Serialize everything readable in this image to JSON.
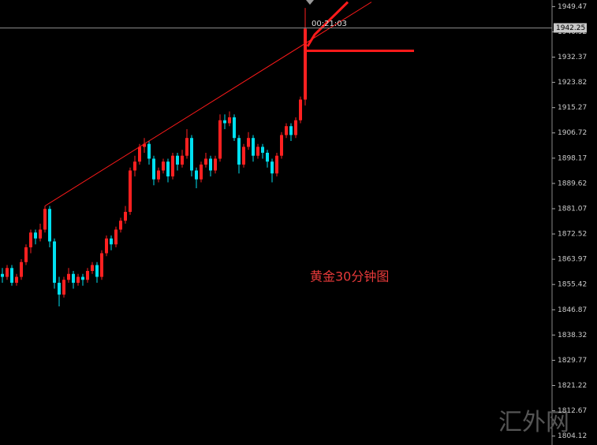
{
  "chart_data": {
    "type": "candlestick",
    "annotation": "黄金30分钟图",
    "watermark": "汇外网",
    "time_label": "00:21:03",
    "current_price": 1942.25,
    "up_color": "#ff2020",
    "down_color": "#00e0f0",
    "ylim": [
      1801.1,
      1951.7
    ],
    "yticks": [
      1949.47,
      1940.92,
      1932.37,
      1923.82,
      1915.27,
      1906.72,
      1898.17,
      1889.62,
      1881.07,
      1872.52,
      1863.97,
      1855.42,
      1846.87,
      1838.32,
      1829.77,
      1821.22,
      1812.67,
      1804.12
    ],
    "trendline": {
      "x": [
        9,
        78
      ],
      "y": [
        1882,
        1951
      ]
    },
    "level_line": {
      "x": [
        64,
        87
      ],
      "y": [
        1934.5,
        1934.5
      ]
    },
    "arrow": {
      "x": [
        64.5,
        66,
        73
      ],
      "y": [
        1936,
        1940,
        1951
      ]
    },
    "candles": [
      [
        1859,
        1861,
        1856,
        1858
      ],
      [
        1858,
        1862,
        1857,
        1861
      ],
      [
        1861,
        1862,
        1855,
        1856
      ],
      [
        1856,
        1859,
        1855,
        1858
      ],
      [
        1858,
        1864,
        1857,
        1863
      ],
      [
        1863,
        1869,
        1862,
        1868
      ],
      [
        1868,
        1874,
        1866,
        1873
      ],
      [
        1873,
        1874,
        1869,
        1871
      ],
      [
        1871,
        1876,
        1870,
        1874
      ],
      [
        1874,
        1882,
        1873,
        1881
      ],
      [
        1881,
        1882,
        1868,
        1870
      ],
      [
        1870,
        1871,
        1854,
        1856
      ],
      [
        1856,
        1858,
        1848,
        1852
      ],
      [
        1852,
        1858,
        1851,
        1857
      ],
      [
        1857,
        1861,
        1856,
        1859
      ],
      [
        1859,
        1860,
        1854,
        1856
      ],
      [
        1856,
        1859,
        1855,
        1858
      ],
      [
        1858,
        1859,
        1855,
        1857
      ],
      [
        1857,
        1861,
        1856,
        1860
      ],
      [
        1860,
        1863,
        1859,
        1862
      ],
      [
        1862,
        1863,
        1856,
        1858
      ],
      [
        1858,
        1867,
        1857,
        1866
      ],
      [
        1866,
        1872,
        1865,
        1871
      ],
      [
        1871,
        1872,
        1867,
        1869
      ],
      [
        1869,
        1875,
        1868,
        1874
      ],
      [
        1874,
        1878,
        1873,
        1877
      ],
      [
        1877,
        1882,
        1876,
        1880
      ],
      [
        1880,
        1895,
        1879,
        1894
      ],
      [
        1894,
        1899,
        1892,
        1897
      ],
      [
        1897,
        1903,
        1896,
        1902
      ],
      [
        1902,
        1905,
        1900,
        1903
      ],
      [
        1903,
        1904,
        1896,
        1898
      ],
      [
        1898,
        1899,
        1889,
        1891
      ],
      [
        1891,
        1895,
        1890,
        1894
      ],
      [
        1894,
        1898,
        1893,
        1897
      ],
      [
        1897,
        1898,
        1890,
        1892
      ],
      [
        1892,
        1900,
        1891,
        1899
      ],
      [
        1899,
        1900,
        1894,
        1896
      ],
      [
        1896,
        1901,
        1895,
        1899
      ],
      [
        1899,
        1908,
        1898,
        1905
      ],
      [
        1905,
        1906,
        1892,
        1894
      ],
      [
        1894,
        1895,
        1888,
        1891
      ],
      [
        1891,
        1897,
        1890,
        1896
      ],
      [
        1896,
        1900,
        1895,
        1898
      ],
      [
        1898,
        1899,
        1892,
        1894
      ],
      [
        1894,
        1899,
        1893,
        1898
      ],
      [
        1898,
        1913,
        1897,
        1911
      ],
      [
        1911,
        1913,
        1908,
        1910
      ],
      [
        1910,
        1914,
        1909,
        1912
      ],
      [
        1912,
        1913,
        1904,
        1905
      ],
      [
        1905,
        1906,
        1893,
        1896
      ],
      [
        1896,
        1903,
        1895,
        1902
      ],
      [
        1902,
        1907,
        1901,
        1905
      ],
      [
        1905,
        1906,
        1897,
        1899
      ],
      [
        1899,
        1903,
        1898,
        1902
      ],
      [
        1902,
        1903,
        1898,
        1900
      ],
      [
        1900,
        1901,
        1895,
        1897
      ],
      [
        1897,
        1898,
        1890,
        1893
      ],
      [
        1893,
        1900,
        1892,
        1899
      ],
      [
        1899,
        1907,
        1898,
        1906
      ],
      [
        1906,
        1910,
        1905,
        1909
      ],
      [
        1909,
        1910,
        1904,
        1906
      ],
      [
        1906,
        1912,
        1905,
        1911
      ],
      [
        1911,
        1919,
        1910,
        1918
      ],
      [
        1918,
        1949,
        1916,
        1942
      ]
    ]
  }
}
